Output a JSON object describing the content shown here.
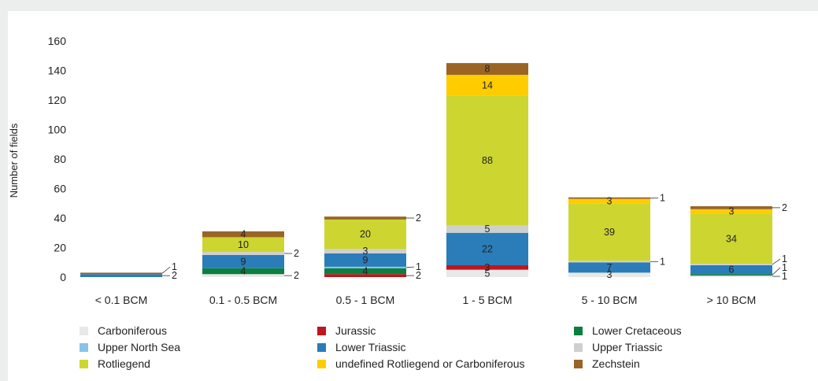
{
  "chart_data": {
    "type": "bar",
    "stacked": true,
    "ylabel": "Number of fields",
    "xlabel": "",
    "ylim": [
      0,
      160
    ],
    "yticks": [
      0,
      20,
      40,
      60,
      80,
      100,
      120,
      140,
      160
    ],
    "categories": [
      "< 0.1 BCM",
      "0.1 - 0.5 BCM",
      "0.5 - 1 BCM",
      "1 - 5 BCM",
      "5 - 10 BCM",
      "> 10 BCM"
    ],
    "series": [
      {
        "name": "Carboniferous",
        "color": "#e8e8e8",
        "values": [
          0,
          2,
          0,
          5,
          3,
          1
        ]
      },
      {
        "name": "Jurassic",
        "color": "#c0161c",
        "values": [
          0,
          0,
          2,
          3,
          0,
          0
        ]
      },
      {
        "name": "Lower Cretaceous",
        "color": "#0b7f3e",
        "values": [
          0,
          4,
          4,
          0,
          0,
          1
        ]
      },
      {
        "name": "Upper North Sea",
        "color": "#88c4ea",
        "values": [
          0,
          0,
          1,
          0,
          0,
          0
        ]
      },
      {
        "name": "Lower Triassic",
        "color": "#2a7db8",
        "values": [
          2,
          9,
          9,
          22,
          7,
          6
        ]
      },
      {
        "name": "Upper Triassic",
        "color": "#cfcfcf",
        "values": [
          0,
          2,
          3,
          5,
          1,
          1
        ]
      },
      {
        "name": "Rotliegend",
        "color": "#cdd630",
        "values": [
          0,
          10,
          20,
          88,
          39,
          34
        ]
      },
      {
        "name": "undefined Rotliegend or Carboniferous",
        "color": "#ffcc00",
        "values": [
          0,
          0,
          0,
          14,
          3,
          3
        ]
      },
      {
        "name": "Zechstein",
        "color": "#9a6524",
        "values": [
          1,
          4,
          2,
          8,
          1,
          2
        ]
      }
    ],
    "legend_position": "bottom",
    "grid": false
  }
}
